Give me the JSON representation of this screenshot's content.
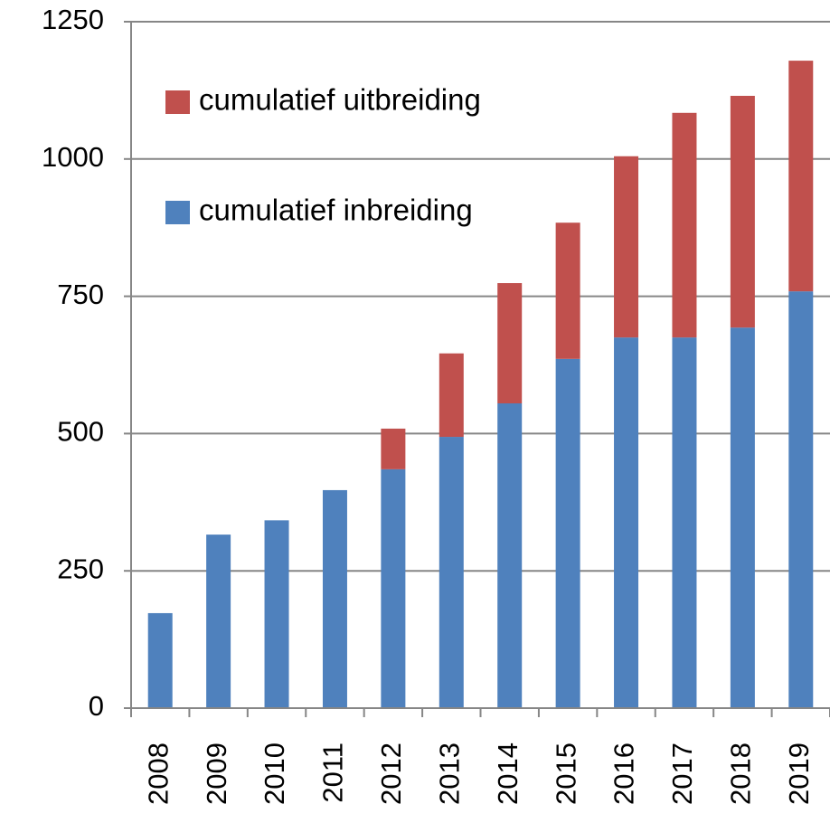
{
  "chart_data": {
    "type": "stacked_bar",
    "categories": [
      "2008",
      "2009",
      "2010",
      "2011",
      "2012",
      "2013",
      "2014",
      "2015",
      "2016",
      "2017",
      "2018",
      "2019"
    ],
    "series": [
      {
        "name": "cumulatief inbreiding",
        "color": "#4f81bd",
        "values": [
          173,
          316,
          342,
          397,
          435,
          494,
          555,
          636,
          675,
          675,
          693,
          759
        ]
      },
      {
        "name": "cumulatief uitbreiding",
        "color": "#c0504d",
        "values": [
          0,
          0,
          0,
          0,
          74,
          152,
          219,
          248,
          330,
          409,
          422,
          420
        ]
      }
    ],
    "ylim": [
      0,
      1250
    ],
    "yticks": [
      0,
      250,
      500,
      750,
      1000,
      1250
    ],
    "grid": true
  }
}
